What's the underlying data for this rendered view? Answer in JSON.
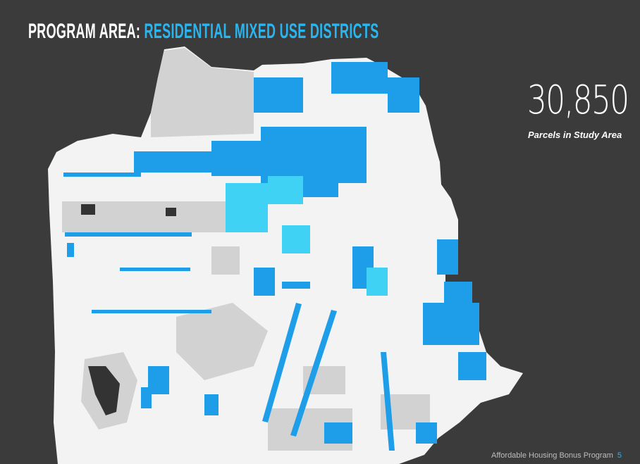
{
  "header": {
    "title_lead": "PROGRAM AREA:",
    "title_highlight": "RESIDENTIAL MIXED USE DISTRICTS"
  },
  "stat": {
    "value": "30,850",
    "label": "Parcels in Study Area"
  },
  "footer": {
    "program": "Affordable Housing Bonus Program",
    "page": "5"
  }
}
